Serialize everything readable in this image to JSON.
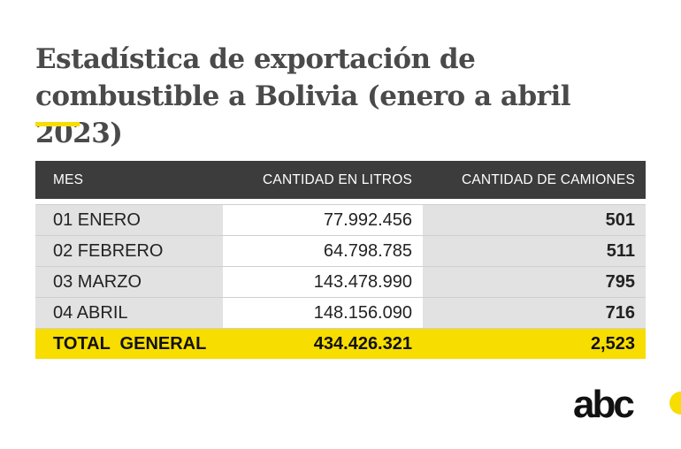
{
  "title": "Estadística de exportación de combustible a Bolivia (enero a abril 2023)",
  "colors": {
    "accent": "#f7dd00",
    "header_bg": "#3c3c3c",
    "row_shade": "#e2e2e2",
    "title": "#4a4a4a"
  },
  "chart_data": {
    "type": "table",
    "title": "Estadística de exportación de combustible a Bolivia (enero a abril 2023)",
    "columns": [
      "MES",
      "CANTIDAD EN LITROS",
      "CANTIDAD DE CAMIONES"
    ],
    "rows": [
      [
        "01 ENERO",
        "77.992.456",
        "501"
      ],
      [
        "02 FEBRERO",
        "64.798.785",
        "511"
      ],
      [
        "03 MARZO",
        "143.478.990",
        "795"
      ],
      [
        "04 ABRIL",
        "148.156.090",
        "716"
      ]
    ],
    "total": [
      "TOTAL  GENERAL",
      "434.426.321",
      "2,523"
    ]
  },
  "logo": {
    "icon": "abc-logo-icon",
    "text": "abc"
  }
}
